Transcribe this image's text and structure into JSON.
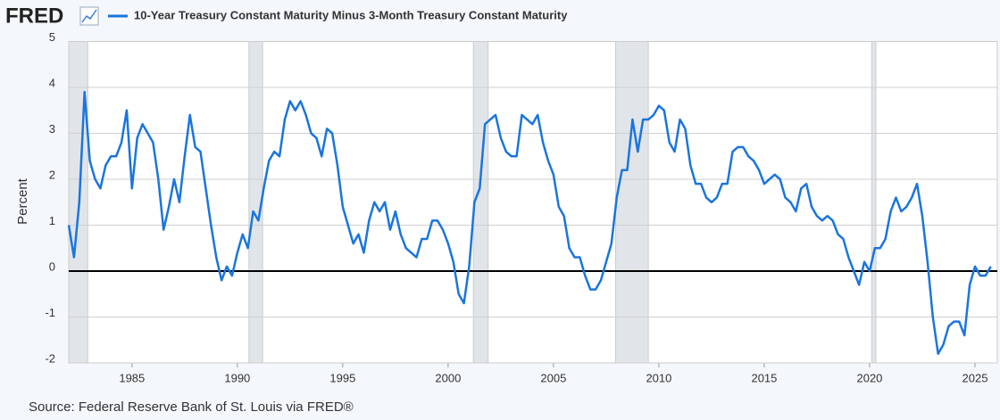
{
  "chart_data": {
    "type": "line",
    "logo": "FRED",
    "y_label": "Percent",
    "source": "Source: Federal Reserve Bank of St. Louis via FRED®",
    "xlim": [
      1982.0,
      2026.06
    ],
    "xticks": [
      1985,
      1990,
      1995,
      2000,
      2005,
      2010,
      2015,
      2020,
      2025
    ],
    "ylim": [
      -2,
      5
    ],
    "yticks": [
      -2,
      -1,
      0,
      1,
      2,
      3,
      4,
      5
    ],
    "grid": true,
    "hline": 0,
    "recessions": [
      [
        1982.0,
        1982.9
      ],
      [
        1990.55,
        1991.2
      ],
      [
        2001.2,
        2001.9
      ],
      [
        2007.95,
        2009.5
      ],
      [
        2020.1,
        2020.3
      ]
    ],
    "x": [
      1982.0,
      1982.25,
      1982.5,
      1982.75,
      1983.0,
      1983.25,
      1983.5,
      1983.75,
      1984.0,
      1984.25,
      1984.5,
      1984.75,
      1985.0,
      1985.25,
      1985.5,
      1985.75,
      1986.0,
      1986.25,
      1986.5,
      1986.75,
      1987.0,
      1987.25,
      1987.5,
      1987.75,
      1988.0,
      1988.25,
      1988.5,
      1988.75,
      1989.0,
      1989.25,
      1989.5,
      1989.75,
      1990.0,
      1990.25,
      1990.5,
      1990.75,
      1991.0,
      1991.25,
      1991.5,
      1991.75,
      1992.0,
      1992.25,
      1992.5,
      1992.75,
      1993.0,
      1993.25,
      1993.5,
      1993.75,
      1994.0,
      1994.25,
      1994.5,
      1994.75,
      1995.0,
      1995.25,
      1995.5,
      1995.75,
      1996.0,
      1996.25,
      1996.5,
      1996.75,
      1997.0,
      1997.25,
      1997.5,
      1997.75,
      1998.0,
      1998.25,
      1998.5,
      1998.75,
      1999.0,
      1999.25,
      1999.5,
      1999.75,
      2000.0,
      2000.25,
      2000.5,
      2000.75,
      2001.0,
      2001.25,
      2001.5,
      2001.75,
      2002.0,
      2002.25,
      2002.5,
      2002.75,
      2003.0,
      2003.25,
      2003.5,
      2003.75,
      2004.0,
      2004.25,
      2004.5,
      2004.75,
      2005.0,
      2005.25,
      2005.5,
      2005.75,
      2006.0,
      2006.25,
      2006.5,
      2006.75,
      2007.0,
      2007.25,
      2007.5,
      2007.75,
      2008.0,
      2008.25,
      2008.5,
      2008.75,
      2009.0,
      2009.25,
      2009.5,
      2009.75,
      2010.0,
      2010.25,
      2010.5,
      2010.75,
      2011.0,
      2011.25,
      2011.5,
      2011.75,
      2012.0,
      2012.25,
      2012.5,
      2012.75,
      2013.0,
      2013.25,
      2013.5,
      2013.75,
      2014.0,
      2014.25,
      2014.5,
      2014.75,
      2015.0,
      2015.25,
      2015.5,
      2015.75,
      2016.0,
      2016.25,
      2016.5,
      2016.75,
      2017.0,
      2017.25,
      2017.5,
      2017.75,
      2018.0,
      2018.25,
      2018.5,
      2018.75,
      2019.0,
      2019.25,
      2019.5,
      2019.75,
      2020.0,
      2020.25,
      2020.5,
      2020.75,
      2021.0,
      2021.25,
      2021.5,
      2021.75,
      2022.0,
      2022.25,
      2022.5,
      2022.75,
      2023.0,
      2023.25,
      2023.5,
      2023.75,
      2024.0,
      2024.25,
      2024.5,
      2024.75,
      2025.0,
      2025.25,
      2025.5,
      2025.75
    ],
    "series": [
      {
        "name": "10-Year Treasury Constant Maturity Minus 3-Month Treasury Constant Maturity",
        "color": "#1a75de",
        "values": [
          1.0,
          0.3,
          1.5,
          3.9,
          2.4,
          2.0,
          1.8,
          2.3,
          2.5,
          2.5,
          2.8,
          3.5,
          1.8,
          2.9,
          3.2,
          3.0,
          2.8,
          2.0,
          0.9,
          1.4,
          2.0,
          1.5,
          2.5,
          3.4,
          2.7,
          2.6,
          1.8,
          1.0,
          0.3,
          -0.2,
          0.1,
          -0.1,
          0.4,
          0.8,
          0.5,
          1.3,
          1.1,
          1.8,
          2.4,
          2.6,
          2.5,
          3.3,
          3.7,
          3.5,
          3.7,
          3.4,
          3.0,
          2.9,
          2.5,
          3.1,
          3.0,
          2.3,
          1.4,
          1.0,
          0.6,
          0.8,
          0.4,
          1.1,
          1.5,
          1.3,
          1.5,
          0.9,
          1.3,
          0.8,
          0.5,
          0.4,
          0.3,
          0.7,
          0.7,
          1.1,
          1.1,
          0.9,
          0.6,
          0.2,
          -0.5,
          -0.7,
          0.1,
          1.5,
          1.8,
          3.2,
          3.3,
          3.4,
          2.9,
          2.6,
          2.5,
          2.5,
          3.4,
          3.3,
          3.2,
          3.4,
          2.8,
          2.4,
          2.1,
          1.4,
          1.2,
          0.5,
          0.3,
          0.3,
          -0.1,
          -0.4,
          -0.4,
          -0.2,
          0.2,
          0.6,
          1.6,
          2.2,
          2.2,
          3.3,
          2.6,
          3.3,
          3.3,
          3.4,
          3.6,
          3.5,
          2.8,
          2.6,
          3.3,
          3.1,
          2.3,
          1.9,
          1.9,
          1.6,
          1.5,
          1.6,
          1.9,
          1.9,
          2.6,
          2.7,
          2.7,
          2.5,
          2.4,
          2.2,
          1.9,
          2.0,
          2.1,
          2.0,
          1.6,
          1.5,
          1.3,
          1.8,
          1.9,
          1.4,
          1.2,
          1.1,
          1.2,
          1.1,
          0.8,
          0.7,
          0.3,
          0.0,
          -0.3,
          0.2,
          0.0,
          0.5,
          0.5,
          0.7,
          1.3,
          1.6,
          1.3,
          1.4,
          1.6,
          1.9,
          1.2,
          0.2,
          -1.0,
          -1.8,
          -1.6,
          -1.2,
          -1.1,
          -1.1,
          -1.4,
          -0.3,
          0.1,
          -0.1,
          -0.1,
          0.1
        ]
      }
    ]
  }
}
